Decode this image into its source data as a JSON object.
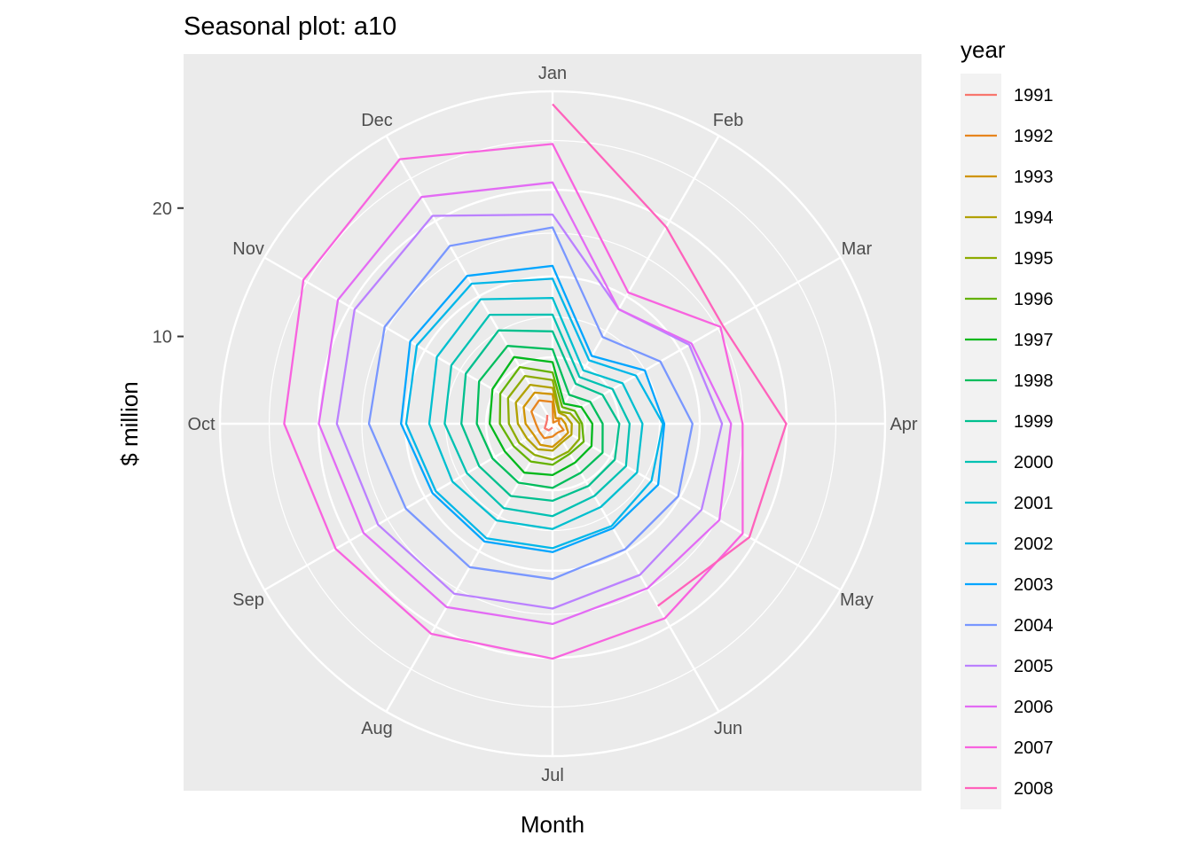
{
  "chart_data": {
    "type": "line",
    "coord": "polar",
    "title": "Seasonal plot: a10",
    "xlabel": "Month",
    "ylabel": "$ million",
    "x": [
      "Jan",
      "Feb",
      "Mar",
      "Apr",
      "May",
      "Jun",
      "Jul",
      "Aug",
      "Sep",
      "Oct",
      "Nov",
      "Dec"
    ],
    "y_ticks": [
      10,
      20
    ],
    "ylim": [
      3.2,
      29.1
    ],
    "grid": true,
    "legend": {
      "title": "year",
      "position": "right"
    },
    "series": [
      {
        "name": "1991",
        "color": "#F8766D",
        "values": [
          null,
          null,
          null,
          null,
          null,
          null,
          3.5,
          3.8,
          3.9,
          3.7,
          3.7,
          4.0
        ]
      },
      {
        "name": "1992",
        "color": "#E7851E",
        "values": [
          4.9,
          3.3,
          3.8,
          3.7,
          4.2,
          4.0,
          4.2,
          4.5,
          4.4,
          4.5,
          5.1,
          5.3
        ]
      },
      {
        "name": "1993",
        "color": "#D09400",
        "values": [
          5.5,
          3.7,
          4.0,
          4.2,
          4.6,
          4.6,
          5.0,
          5.1,
          4.9,
          5.3,
          5.8,
          6.0
        ]
      },
      {
        "name": "1994",
        "color": "#B2A100",
        "values": [
          6.0,
          4.2,
          4.4,
          4.7,
          4.9,
          4.8,
          5.3,
          5.5,
          5.5,
          5.9,
          6.5,
          6.7
        ]
      },
      {
        "name": "1995",
        "color": "#8EAB00",
        "values": [
          6.6,
          4.3,
          4.8,
          5.3,
          5.6,
          5.7,
          6.0,
          6.0,
          6.2,
          6.6,
          7.2,
          7.5
        ]
      },
      {
        "name": "1996",
        "color": "#64B200",
        "values": [
          7.2,
          4.7,
          5.2,
          5.5,
          6.0,
          5.9,
          6.4,
          6.6,
          6.7,
          7.3,
          7.9,
          8.3
        ]
      },
      {
        "name": "1997",
        "color": "#00B81B",
        "values": [
          8.0,
          5.0,
          5.8,
          6.3,
          6.7,
          6.7,
          7.2,
          7.6,
          7.5,
          8.1,
          8.6,
          9.2
        ]
      },
      {
        "name": "1998",
        "color": "#00BD5C",
        "values": [
          9.0,
          5.8,
          6.6,
          7.1,
          7.7,
          7.6,
          8.2,
          8.5,
          8.6,
          9.1,
          9.8,
          10.2
        ]
      },
      {
        "name": "1999",
        "color": "#00C08E",
        "values": [
          10.4,
          6.8,
          7.7,
          8.4,
          8.8,
          8.8,
          9.2,
          9.7,
          9.8,
          10.3,
          11.0,
          11.6
        ]
      },
      {
        "name": "2000",
        "color": "#00C1B2",
        "values": [
          11.7,
          7.4,
          8.6,
          9.2,
          9.8,
          9.7,
          10.4,
          10.8,
          10.9,
          11.6,
          12.3,
          13.0
        ]
      },
      {
        "name": "2001",
        "color": "#00BFD0",
        "values": [
          13.0,
          8.0,
          9.5,
          10.2,
          10.8,
          10.7,
          11.4,
          11.9,
          12.2,
          12.8,
          13.6,
          14.4
        ]
      },
      {
        "name": "2002",
        "color": "#00B7E8",
        "values": [
          14.5,
          8.9,
          10.7,
          11.8,
          12.1,
          12.4,
          12.9,
          13.5,
          13.7,
          14.6,
          15.4,
          15.8
        ]
      },
      {
        "name": "2003",
        "color": "#00A5FF",
        "values": [
          15.5,
          9.3,
          11.5,
          11.9,
          12.7,
          12.6,
          13.2,
          13.8,
          14.0,
          15.0,
          16.0,
          16.5
        ]
      },
      {
        "name": "2004",
        "color": "#7997FF",
        "values": [
          18.5,
          11.0,
          12.9,
          14.1,
          14.5,
          14.5,
          15.3,
          16.1,
          16.4,
          17.5,
          18.3,
          19.2
        ]
      },
      {
        "name": "2005",
        "color": "#BB81FF",
        "values": [
          19.5,
          13.5,
          15.5,
          16.4,
          16.6,
          16.8,
          17.6,
          18.5,
          18.9,
          20.0,
          21.0,
          21.9
        ]
      },
      {
        "name": "2006",
        "color": "#E36BF4",
        "values": [
          22.0,
          13.5,
          15.7,
          17.1,
          18.2,
          18.0,
          18.8,
          19.7,
          20.2,
          21.4,
          22.5,
          23.6
        ]
      },
      {
        "name": "2007",
        "color": "#F863DF",
        "values": [
          25.0,
          15.0,
          18.3,
          18.0,
          20.3,
          20.7,
          21.5,
          22.1,
          22.7,
          24.1,
          25.6,
          27.0
        ]
      },
      {
        "name": "2008",
        "color": "#FF62BC",
        "values": [
          28.1,
          20.9,
          18.5,
          21.4,
          20.9,
          19.6,
          null,
          null,
          null,
          null,
          null,
          null
        ]
      }
    ]
  }
}
